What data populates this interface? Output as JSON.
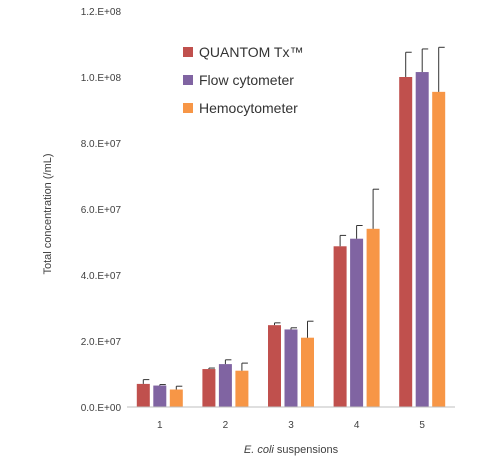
{
  "chart_data": {
    "type": "bar",
    "categories": [
      "1",
      "2",
      "3",
      "4",
      "5"
    ],
    "series": [
      {
        "name": "QUANTOM Tx™",
        "color": "#c0504d",
        "values": [
          7000000.0,
          11500000.0,
          24800000.0,
          48700000.0,
          100000000.0
        ],
        "errors": [
          1300000.0,
          300000.0,
          700000.0,
          3300000.0,
          7500000.0
        ]
      },
      {
        "name": "Flow cytometer",
        "color": "#8064a2",
        "values": [
          6500000.0,
          13000000.0,
          23500000.0,
          51000000.0,
          101500000.0
        ],
        "errors": [
          300000.0,
          1300000.0,
          500000.0,
          4000000.0,
          7000000.0
        ]
      },
      {
        "name": "Hemocytometer",
        "color": "#f79646",
        "values": [
          5300000.0,
          11000000.0,
          21000000.0,
          54000000.0,
          95500000.0
        ],
        "errors": [
          1000000.0,
          2300000.0,
          5000000.0,
          12000000.0,
          13500000.0
        ]
      }
    ],
    "ylim": [
      0,
      120000000
    ],
    "yticks": [
      0,
      20000000,
      40000000,
      60000000,
      80000000,
      100000000,
      120000000
    ],
    "ytick_labels": [
      "0.0.E+00",
      "2.0.E+07",
      "4.0.E+07",
      "6.0.E+07",
      "8.0.E+07",
      "1.0.E+08",
      "1.2.E+08"
    ],
    "ylabel": "Total concentration (/mL)",
    "xlabel_italic": "E. coli",
    "xlabel_rest": " suspensions",
    "legend_position": "top-left",
    "grid": false
  }
}
